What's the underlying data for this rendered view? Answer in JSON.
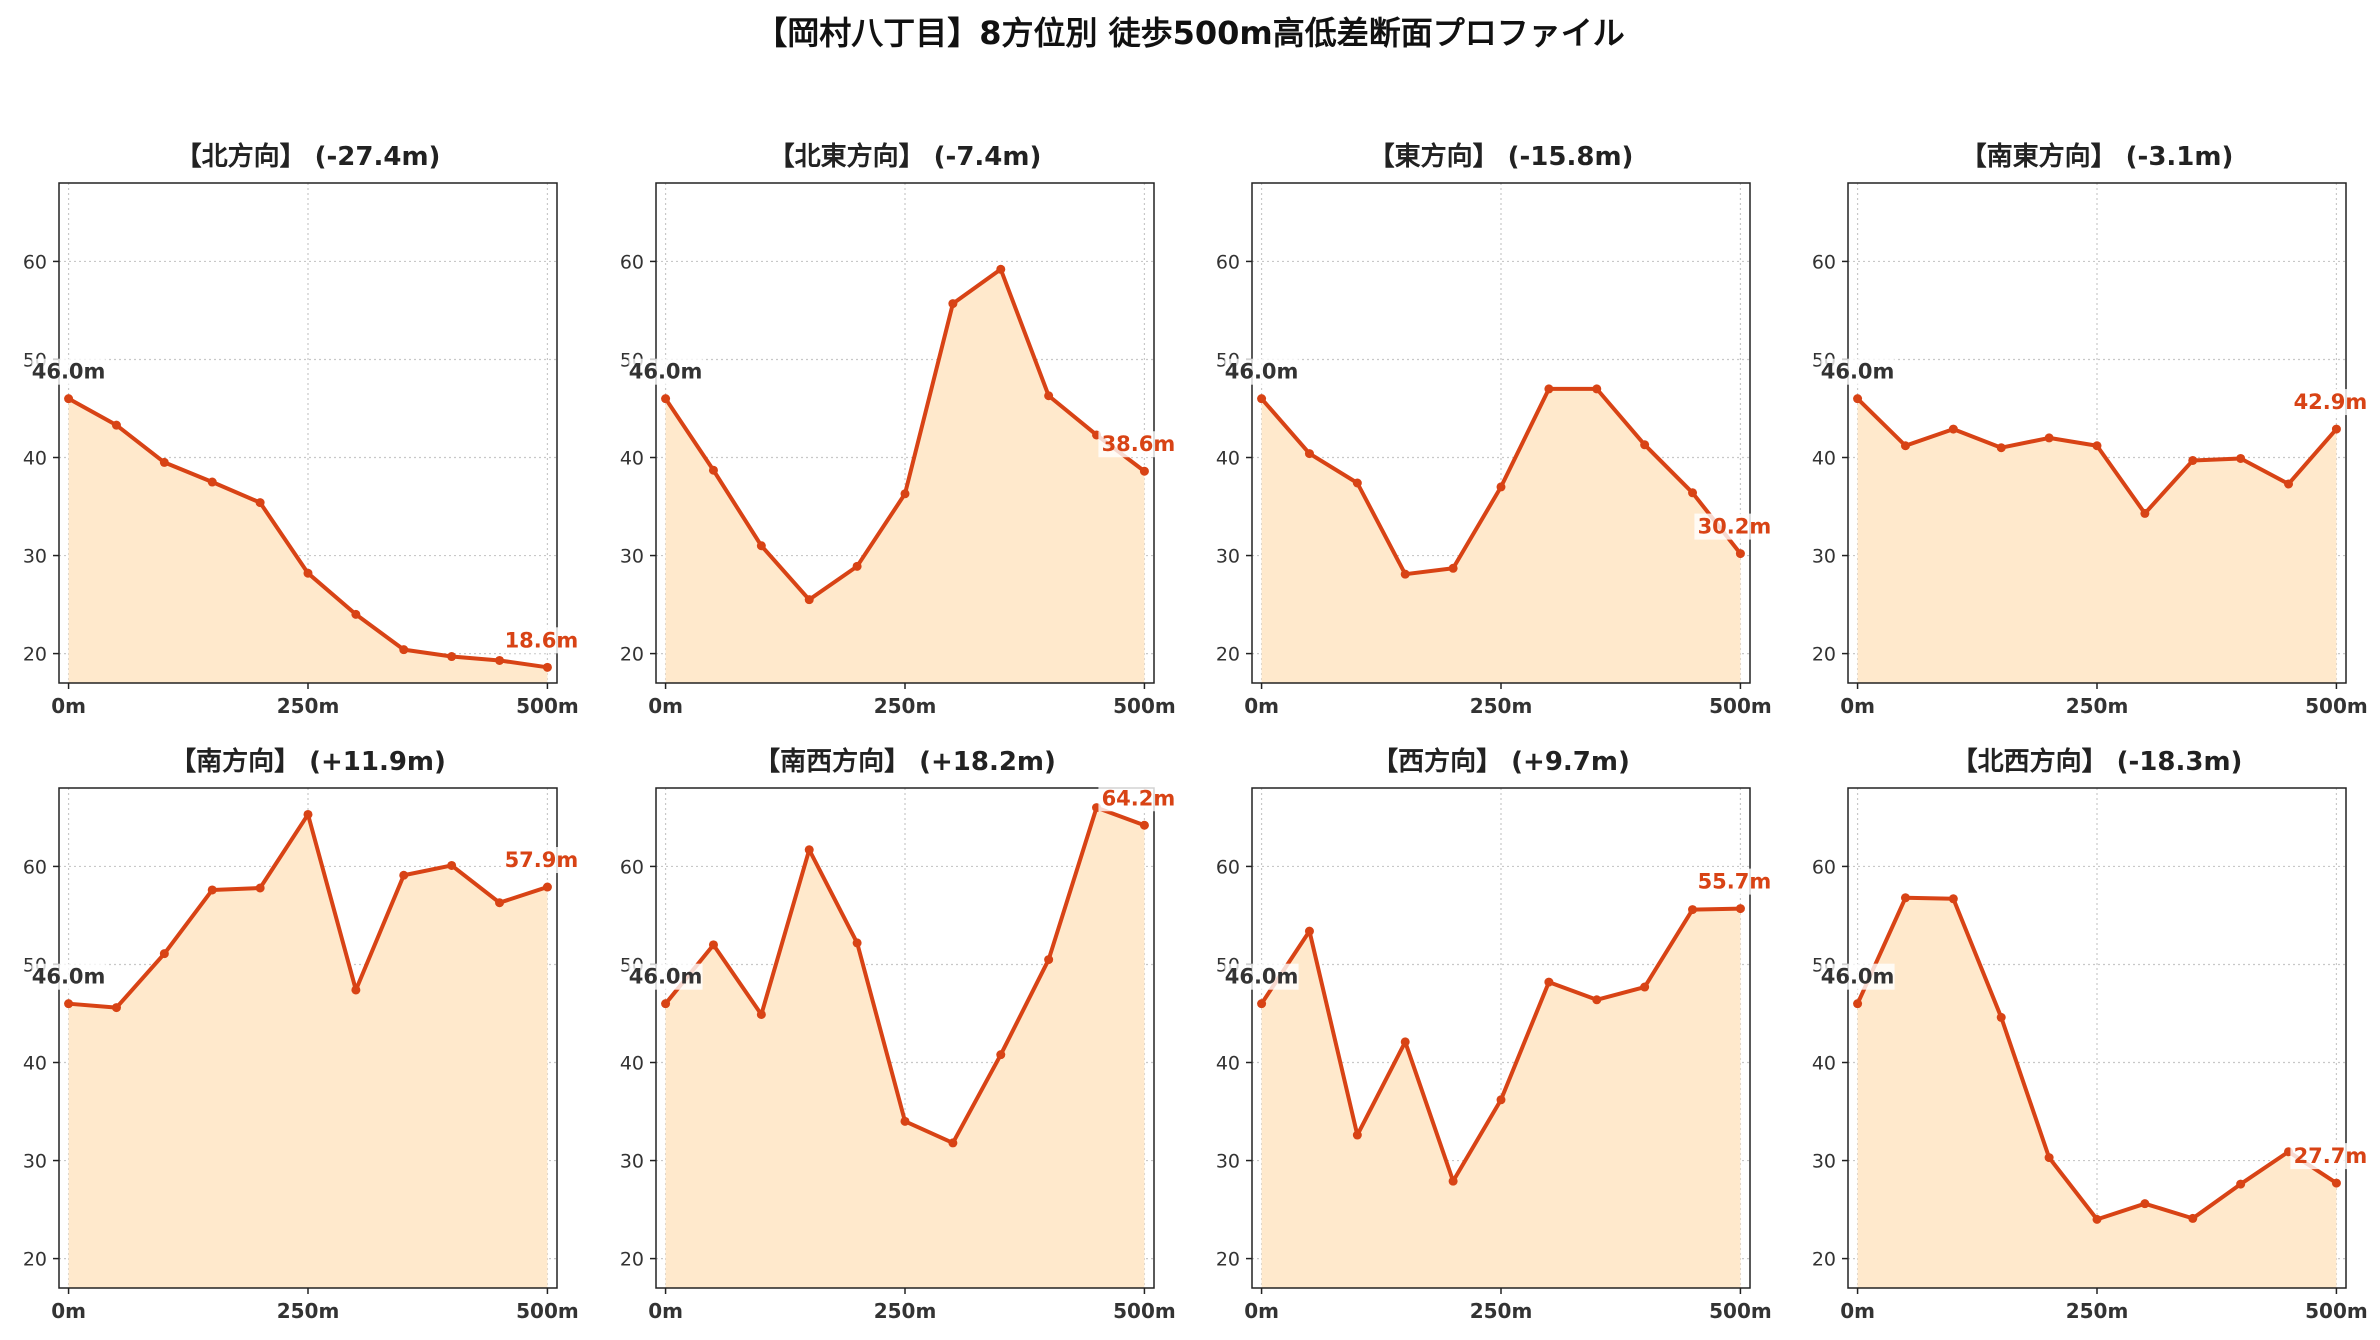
{
  "title": "【岡村八丁目】8方位別 徒歩500m高低差断面プロファイル",
  "colors": {
    "line": "#d84315",
    "fill": "#ffe9cc",
    "grid": "#c8c8c8",
    "axis": "#222222",
    "start_label": "#333333",
    "end_label": "#d84315"
  },
  "chart_data": [
    {
      "type": "area",
      "title": "【北方向】 (-27.4m)",
      "x": [
        0,
        50,
        100,
        150,
        200,
        250,
        300,
        350,
        400,
        450,
        500
      ],
      "values": [
        46.0,
        43.3,
        39.5,
        37.5,
        35.4,
        28.2,
        24.0,
        20.4,
        19.7,
        19.3,
        18.6
      ],
      "x_tick_values": [
        0,
        250,
        500
      ],
      "x_tick_labels": [
        "0m",
        "250m",
        "500m"
      ],
      "y_ticks": [
        20,
        30,
        40,
        50,
        60
      ],
      "ylim": [
        17,
        68
      ],
      "xlim": [
        -10,
        510
      ],
      "grid": true,
      "start_label": "46.0m",
      "end_label": "18.6m"
    },
    {
      "type": "area",
      "title": "【北東方向】 (-7.4m)",
      "x": [
        0,
        50,
        100,
        150,
        200,
        250,
        300,
        350,
        400,
        450,
        500
      ],
      "values": [
        46.0,
        38.7,
        31.0,
        25.5,
        28.9,
        36.3,
        55.7,
        59.2,
        46.3,
        42.3,
        38.6
      ],
      "x_tick_values": [
        0,
        250,
        500
      ],
      "x_tick_labels": [
        "0m",
        "250m",
        "500m"
      ],
      "y_ticks": [
        20,
        30,
        40,
        50,
        60
      ],
      "ylim": [
        17,
        68
      ],
      "xlim": [
        -10,
        510
      ],
      "grid": true,
      "start_label": "46.0m",
      "end_label": "38.6m"
    },
    {
      "type": "area",
      "title": "【東方向】 (-15.8m)",
      "x": [
        0,
        50,
        100,
        150,
        200,
        250,
        300,
        350,
        400,
        450,
        500
      ],
      "values": [
        46.0,
        40.4,
        37.4,
        28.1,
        28.7,
        37.0,
        47.0,
        47.0,
        41.3,
        36.4,
        30.2
      ],
      "x_tick_values": [
        0,
        250,
        500
      ],
      "x_tick_labels": [
        "0m",
        "250m",
        "500m"
      ],
      "y_ticks": [
        20,
        30,
        40,
        50,
        60
      ],
      "ylim": [
        17,
        68
      ],
      "xlim": [
        -10,
        510
      ],
      "grid": true,
      "start_label": "46.0m",
      "end_label": "30.2m"
    },
    {
      "type": "area",
      "title": "【南東方向】 (-3.1m)",
      "x": [
        0,
        50,
        100,
        150,
        200,
        250,
        300,
        350,
        400,
        450,
        500
      ],
      "values": [
        46.0,
        41.2,
        42.9,
        41.0,
        42.0,
        41.2,
        34.3,
        39.7,
        39.9,
        37.3,
        42.9
      ],
      "x_tick_values": [
        0,
        250,
        500
      ],
      "x_tick_labels": [
        "0m",
        "250m",
        "500m"
      ],
      "y_ticks": [
        20,
        30,
        40,
        50,
        60
      ],
      "ylim": [
        17,
        68
      ],
      "xlim": [
        -10,
        510
      ],
      "grid": true,
      "start_label": "46.0m",
      "end_label": "42.9m"
    },
    {
      "type": "area",
      "title": "【南方向】 (+11.9m)",
      "x": [
        0,
        50,
        100,
        150,
        200,
        250,
        300,
        350,
        400,
        450,
        500
      ],
      "values": [
        46.0,
        45.6,
        51.1,
        57.6,
        57.8,
        65.3,
        47.4,
        59.1,
        60.1,
        56.3,
        57.9
      ],
      "x_tick_values": [
        0,
        250,
        500
      ],
      "x_tick_labels": [
        "0m",
        "250m",
        "500m"
      ],
      "y_ticks": [
        20,
        30,
        40,
        50,
        60
      ],
      "ylim": [
        17,
        68
      ],
      "xlim": [
        -10,
        510
      ],
      "grid": true,
      "start_label": "46.0m",
      "end_label": "57.9m"
    },
    {
      "type": "area",
      "title": "【南西方向】 (+18.2m)",
      "x": [
        0,
        50,
        100,
        150,
        200,
        250,
        300,
        350,
        400,
        450,
        500
      ],
      "values": [
        46.0,
        52.0,
        44.9,
        61.7,
        52.2,
        34.0,
        31.8,
        40.8,
        50.5,
        66.0,
        64.2
      ],
      "x_tick_values": [
        0,
        250,
        500
      ],
      "x_tick_labels": [
        "0m",
        "250m",
        "500m"
      ],
      "y_ticks": [
        20,
        30,
        40,
        50,
        60
      ],
      "ylim": [
        17,
        68
      ],
      "xlim": [
        -10,
        510
      ],
      "grid": true,
      "start_label": "46.0m",
      "end_label": "64.2m"
    },
    {
      "type": "area",
      "title": "【西方向】 (+9.7m)",
      "x": [
        0,
        50,
        100,
        150,
        200,
        250,
        300,
        350,
        400,
        450,
        500
      ],
      "values": [
        46.0,
        53.4,
        32.6,
        42.1,
        27.9,
        36.2,
        48.2,
        46.4,
        47.7,
        55.6,
        55.7
      ],
      "x_tick_values": [
        0,
        250,
        500
      ],
      "x_tick_labels": [
        "0m",
        "250m",
        "500m"
      ],
      "y_ticks": [
        20,
        30,
        40,
        50,
        60
      ],
      "ylim": [
        17,
        68
      ],
      "xlim": [
        -10,
        510
      ],
      "grid": true,
      "start_label": "46.0m",
      "end_label": "55.7m"
    },
    {
      "type": "area",
      "title": "【北西方向】 (-18.3m)",
      "x": [
        0,
        50,
        100,
        150,
        200,
        250,
        300,
        350,
        400,
        450,
        500
      ],
      "values": [
        46.0,
        56.8,
        56.7,
        44.6,
        30.3,
        24.0,
        25.6,
        24.1,
        27.6,
        30.9,
        27.7
      ],
      "x_tick_values": [
        0,
        250,
        500
      ],
      "x_tick_labels": [
        "0m",
        "250m",
        "500m"
      ],
      "y_ticks": [
        20,
        30,
        40,
        50,
        60
      ],
      "ylim": [
        17,
        68
      ],
      "xlim": [
        -10,
        510
      ],
      "grid": true,
      "start_label": "46.0m",
      "end_label": "27.7m"
    }
  ]
}
